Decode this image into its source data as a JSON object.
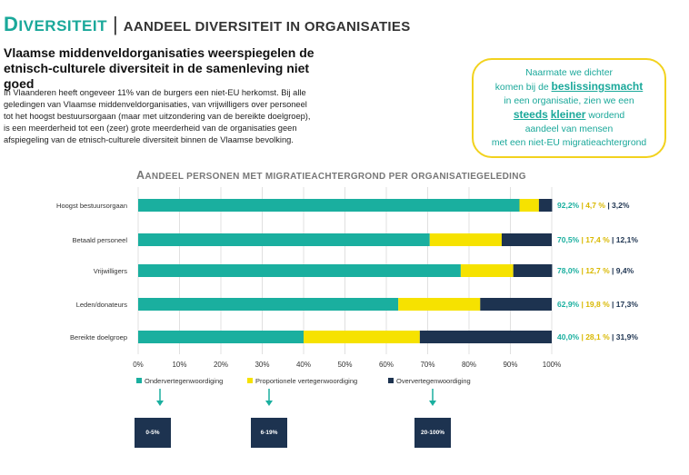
{
  "header": {
    "brand_first": "D",
    "brand_rest": "IVERSITEIT",
    "separator": "|",
    "subtitle": "AANDEEL DIVERSITEIT IN ORGANISATIES"
  },
  "lead": {
    "line1": "Vlaamse middenveldorganisaties weerspiegelen de",
    "line2": "etnisch-culturele diversiteit in de samenleving niet goed"
  },
  "intro": {
    "text": "In Vlaanderen heeft ongeveer 11% van de burgers een niet-EU herkomst. Bij alle geledingen van Vlaamse middenveldorganisaties, van vrijwilligers over personeel tot het hoogst bestuursorgaan (maar met uitzondering van de bereikte doelgroep), is een meerderheid tot een (zeer) grote meerderheid van de organisaties geen afspiegeling van de etnisch-culturele diversiteit binnen de Vlaamse bevolking."
  },
  "callout": {
    "l1": "Naarmate we dichter",
    "l2a": "komen bij de ",
    "l2b": "beslissingsmacht",
    "l3": "in een organisatie, zien we een",
    "l4a": "steeds",
    "l4b": "kleiner",
    "l4c": " wordend",
    "l5": "aandeel van mensen",
    "l6": "met een niet-EU migratieachtergrond"
  },
  "chart_data": {
    "type": "bar",
    "orientation": "horizontal-stacked",
    "title_first": "A",
    "title_rest": "ANDEEL PERSONEN MET MIGRATIEACHTERGROND PER ORGANISATIEGELEDING",
    "categories": [
      "Hoogst bestuursorgaan",
      "Betaald personeel",
      "Vrijwilligers",
      "Leden/donateurs",
      "Bereikte doelgroep"
    ],
    "series": [
      {
        "name": "Ondervertegenwoordiging",
        "color": "#1aaf9f",
        "values": [
          92.2,
          70.5,
          78.0,
          62.9,
          40.0
        ]
      },
      {
        "name": "Proportionele vertegenwoordiging",
        "color": "#f6e200",
        "values": [
          4.7,
          17.4,
          12.7,
          19.8,
          28.1
        ]
      },
      {
        "name": "Oververtegenwoordiging",
        "color": "#1d3350",
        "values": [
          3.2,
          12.1,
          9.4,
          17.3,
          31.9
        ]
      }
    ],
    "labels": [
      [
        "92,2%",
        "4,7 %",
        "3,2%"
      ],
      [
        "70,5%",
        "17,4 %",
        "12,1%"
      ],
      [
        "78,0%",
        "12,7 %",
        "9,4%"
      ],
      [
        "62,9%",
        "19,8 %",
        "17,3%"
      ],
      [
        "40,0%",
        "28,1 %",
        "31,9%"
      ]
    ],
    "label_sep": "|",
    "xlim": [
      0,
      100
    ],
    "xticks": [
      "0%",
      "10%",
      "20%",
      "30%",
      "40%",
      "50%",
      "60%",
      "70%",
      "80%",
      "90%",
      "100%"
    ],
    "legend_position": "bottom"
  },
  "ranges": {
    "low": "0-5%",
    "mid": "6-19%",
    "high": "20-100%"
  },
  "colors": {
    "teal": "#1aaf9f",
    "yellow": "#f6e200",
    "navy": "#1d3350"
  }
}
